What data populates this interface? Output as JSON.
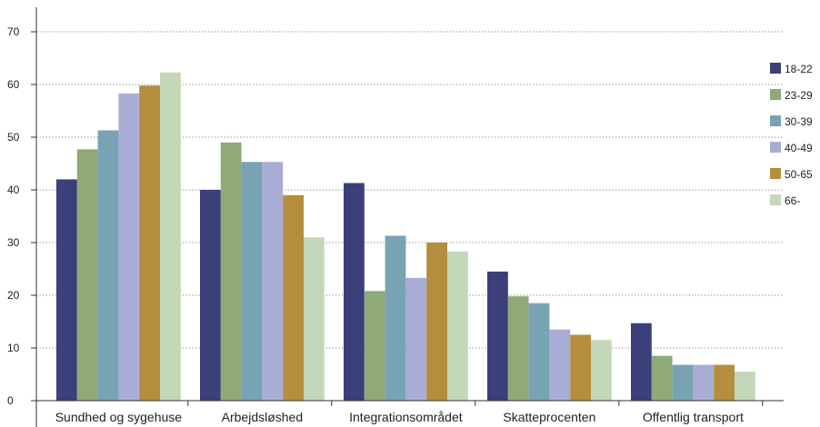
{
  "chart_data": {
    "type": "bar",
    "title": "",
    "xlabel": "",
    "ylabel": "",
    "categories": [
      "Sundhed og sygehuse",
      "Arbejdsløshed",
      "Integrationsområdet",
      "Skatteprocenten",
      "Offentlig transport"
    ],
    "series": [
      {
        "name": "18-22",
        "color": "#3b3f7a",
        "values": [
          42,
          40,
          41.3,
          24.5,
          14.7
        ]
      },
      {
        "name": "23-29",
        "color": "#8faa78",
        "values": [
          47.7,
          49,
          20.8,
          19.8,
          8.5
        ]
      },
      {
        "name": "30-39",
        "color": "#77a3b5",
        "values": [
          51.3,
          45.3,
          31.3,
          18.5,
          6.8
        ]
      },
      {
        "name": "40-49",
        "color": "#a9add5",
        "values": [
          58.3,
          45.3,
          23.3,
          13.5,
          6.8
        ]
      },
      {
        "name": "50-65",
        "color": "#b48e3c",
        "values": [
          59.8,
          39,
          30,
          12.5,
          6.8
        ]
      },
      {
        "name": "66-",
        "color": "#c4d7b8",
        "values": [
          62.3,
          31,
          28.3,
          11.5,
          5.5
        ]
      }
    ],
    "ylim": [
      0,
      70
    ],
    "yticks": [
      0,
      10,
      20,
      30,
      40,
      50,
      60,
      70
    ],
    "grid": true,
    "legend_position": "right"
  }
}
